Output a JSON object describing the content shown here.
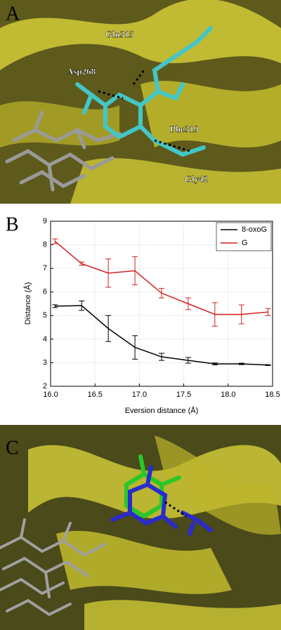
{
  "figure": {
    "panel_labels": [
      "A",
      "B",
      "C"
    ],
    "annotations": [
      "Gln315",
      "Asp268",
      "Phe319",
      "Gly42"
    ]
  },
  "chart_data": {
    "type": "line",
    "x_label": "Eversion distance (Å)",
    "y_label": "Distance (Å)",
    "x": [
      16.05,
      16.35,
      16.65,
      16.95,
      17.25,
      17.55,
      17.85,
      18.15,
      18.45
    ],
    "series": [
      {
        "name": "8-oxoG",
        "color": "#000000",
        "values": [
          5.4,
          5.42,
          4.45,
          3.65,
          3.25,
          3.1,
          2.95,
          2.95,
          2.9
        ],
        "errors": [
          0.06,
          0.2,
          0.55,
          0.5,
          0.15,
          0.12,
          0.04,
          0.03,
          0.02
        ]
      },
      {
        "name": "G",
        "color": "#d42020",
        "values": [
          8.15,
          7.2,
          6.8,
          6.9,
          5.95,
          5.5,
          5.05,
          5.05,
          5.15
        ],
        "errors": [
          0.1,
          0.07,
          0.6,
          0.6,
          0.2,
          0.25,
          0.5,
          0.4,
          0.15
        ]
      }
    ],
    "xlim": [
      16,
      18.5
    ],
    "ylim": [
      2,
      9
    ],
    "xticks": [
      {
        "value": 16,
        "label": "16.0"
      },
      16.5,
      {
        "value": 17,
        "label": "17.0"
      },
      17.5,
      {
        "value": 18,
        "label": "18.0"
      },
      18.5
    ],
    "yticks": [
      2,
      3,
      4,
      5,
      6,
      7,
      8,
      9
    ],
    "grid": true,
    "legend": "upper right"
  }
}
